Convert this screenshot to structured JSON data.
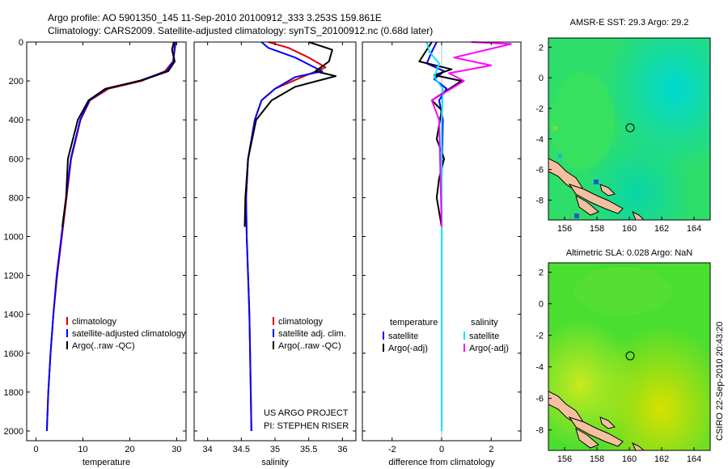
{
  "header": {
    "title_line1": "Argo profile: AO 5901350_145 11-Sep-2010 20100912_333 3.253S 159.861E",
    "title_line2": "Climatology: CARS2009. Satellite-adjusted climatology: synTS_20100912.nc (0.68d later)"
  },
  "side_text": "CSIRO 22-Sep-2010 20:43:20",
  "project_line1": "US ARGO PROJECT",
  "project_line2": "PI: STEPHEN RISER",
  "colors": {
    "climatology": "#e00000",
    "satellite": "#0000ff",
    "argo": "#000000",
    "cyan": "#00e5ff",
    "magenta": "#ff00ff"
  },
  "chart_data": [
    {
      "type": "line",
      "xlabel": "temperature",
      "ylim": [
        2050,
        0
      ],
      "xlim": [
        -2,
        32
      ],
      "xticks": [
        0,
        10,
        20,
        30
      ],
      "yticks": [
        0,
        200,
        400,
        600,
        800,
        1000,
        1200,
        1400,
        1600,
        1800,
        2000
      ],
      "legend": [
        "climatology",
        "satellite-adjusted climatology",
        "Argo(..raw -QC)"
      ],
      "series": [
        {
          "name": "climatology",
          "color": "climatology",
          "x": [
            29.8,
            29.6,
            29.2,
            27.5,
            22.5,
            15.5,
            11.5,
            9.5,
            7.5,
            6.5,
            5.5,
            4.5,
            3.7,
            3.1,
            2.6,
            2.3
          ],
          "y": [
            0,
            40,
            100,
            150,
            200,
            240,
            300,
            400,
            600,
            800,
            1000,
            1200,
            1400,
            1600,
            1800,
            2000
          ]
        },
        {
          "name": "satellite-adjusted climatology",
          "color": "satellite",
          "x": [
            29.6,
            29.5,
            29.3,
            27.8,
            22.0,
            15.0,
            11.4,
            9.4,
            7.4,
            6.4,
            5.4,
            4.4,
            3.7,
            3.1,
            2.6,
            2.3
          ],
          "y": [
            0,
            40,
            100,
            150,
            200,
            240,
            300,
            400,
            600,
            800,
            1000,
            1200,
            1400,
            1600,
            1800,
            2000
          ]
        },
        {
          "name": "Argo(..raw -QC)",
          "color": "argo",
          "x": [
            29.4,
            29.0,
            29.6,
            28.2,
            22.8,
            14.8,
            11.2,
            8.9,
            6.8,
            6.4,
            5.6
          ],
          "y": [
            0,
            40,
            100,
            150,
            195,
            240,
            300,
            400,
            600,
            800,
            950
          ]
        }
      ]
    },
    {
      "type": "line",
      "xlabel": "salinity",
      "xlim": [
        33.8,
        36.2
      ],
      "ylim": [
        2050,
        0
      ],
      "xticks": [
        34,
        34.5,
        35,
        35.5,
        36
      ],
      "legend": [
        "climatology",
        "satellite adj. clim.",
        "Argo(..raw -QC)"
      ],
      "series": [
        {
          "name": "climatology",
          "color": "climatology",
          "x": [
            34.9,
            35.2,
            35.5,
            35.75,
            35.4,
            35.0,
            34.8,
            34.7,
            34.6,
            34.57,
            34.58,
            34.6,
            34.62,
            34.63,
            34.64,
            34.65
          ],
          "y": [
            0,
            30,
            80,
            130,
            180,
            240,
            300,
            400,
            600,
            800,
            1000,
            1200,
            1400,
            1600,
            1800,
            2000
          ]
        },
        {
          "name": "satellite adj. clim.",
          "color": "satellite",
          "x": [
            34.8,
            34.9,
            35.3,
            35.7,
            35.3,
            35.0,
            34.8,
            34.7,
            34.6,
            34.57,
            34.58,
            34.6,
            34.62,
            34.63,
            34.64,
            34.65
          ],
          "y": [
            0,
            30,
            80,
            150,
            180,
            240,
            300,
            400,
            600,
            800,
            1000,
            1200,
            1400,
            1600,
            1800,
            2000
          ]
        },
        {
          "name": "Argo(..raw -QC)",
          "color": "argo",
          "x": [
            35.5,
            35.85,
            35.8,
            35.6,
            35.9,
            35.3,
            34.95,
            34.72,
            34.6,
            34.56,
            34.55
          ],
          "y": [
            0,
            40,
            100,
            150,
            175,
            230,
            300,
            400,
            600,
            800,
            950
          ]
        }
      ]
    },
    {
      "type": "line",
      "xlabel": "difference from climatology",
      "xlim": [
        -3.2,
        3.2
      ],
      "ylim": [
        2050,
        0
      ],
      "xticks": [
        -2,
        0,
        2
      ],
      "legend_groups": [
        {
          "title": "temperature",
          "items": [
            "satellite",
            "Argo(-adj)"
          ]
        },
        {
          "title": "salinity",
          "items": [
            "satellite",
            "Argo(-adj)"
          ]
        }
      ],
      "series": [
        {
          "name": "satellite",
          "group": "temperature",
          "color": "satellite",
          "x": [
            -0.2,
            -0.4,
            -0.6,
            0.1,
            -0.3,
            0.2,
            -0.1,
            0.05,
            0.0,
            0.0,
            0.0,
            0.0
          ],
          "y": [
            0,
            50,
            110,
            150,
            190,
            240,
            300,
            400,
            700,
            1200,
            1700,
            2000
          ]
        },
        {
          "name": "Argo(-adj)",
          "group": "temperature",
          "color": "argo",
          "x": [
            -0.4,
            -0.6,
            -0.9,
            0.4,
            -0.3,
            0.8,
            0.2,
            -0.4,
            0.0,
            -0.2,
            0.1,
            -0.1,
            -0.2,
            0.0
          ],
          "y": [
            0,
            40,
            100,
            140,
            170,
            200,
            250,
            300,
            350,
            500,
            600,
            700,
            800,
            950
          ]
        },
        {
          "name": "satellite",
          "group": "salinity",
          "color": "cyan",
          "x": [
            -0.6,
            -0.5,
            -0.1,
            -0.3,
            0.05,
            0.0,
            0.0,
            0.0
          ],
          "y": [
            0,
            50,
            110,
            180,
            240,
            400,
            1200,
            2000
          ]
        },
        {
          "name": "Argo(-adj)",
          "group": "salinity",
          "color": "magenta",
          "x": [
            1.2,
            2.8,
            0.5,
            2.0,
            0.3,
            0.9,
            -0.4,
            -0.1,
            0.0
          ],
          "y": [
            0,
            10,
            80,
            120,
            160,
            200,
            300,
            400,
            950
          ]
        }
      ]
    },
    {
      "type": "heatmap",
      "title": "AMSR-E SST: 29.3 Argo: 29.2",
      "xlim": [
        155,
        165
      ],
      "ylim": [
        -9.3,
        2.6
      ],
      "xticks": [
        156,
        158,
        160,
        162,
        164
      ],
      "yticks": [
        2,
        0,
        -2,
        -4,
        -6,
        -8
      ],
      "marker": {
        "lon": 159.861,
        "lat": -3.253
      }
    },
    {
      "type": "heatmap",
      "title": "Altimetric SLA: 0.028 Argo: NaN",
      "xlim": [
        155,
        165
      ],
      "ylim": [
        -9.3,
        2.6
      ],
      "xticks": [
        156,
        158,
        160,
        162,
        164
      ],
      "yticks": [
        2,
        0,
        -2,
        -4,
        -6,
        -8
      ],
      "marker": {
        "lon": 159.861,
        "lat": -3.253
      }
    }
  ]
}
